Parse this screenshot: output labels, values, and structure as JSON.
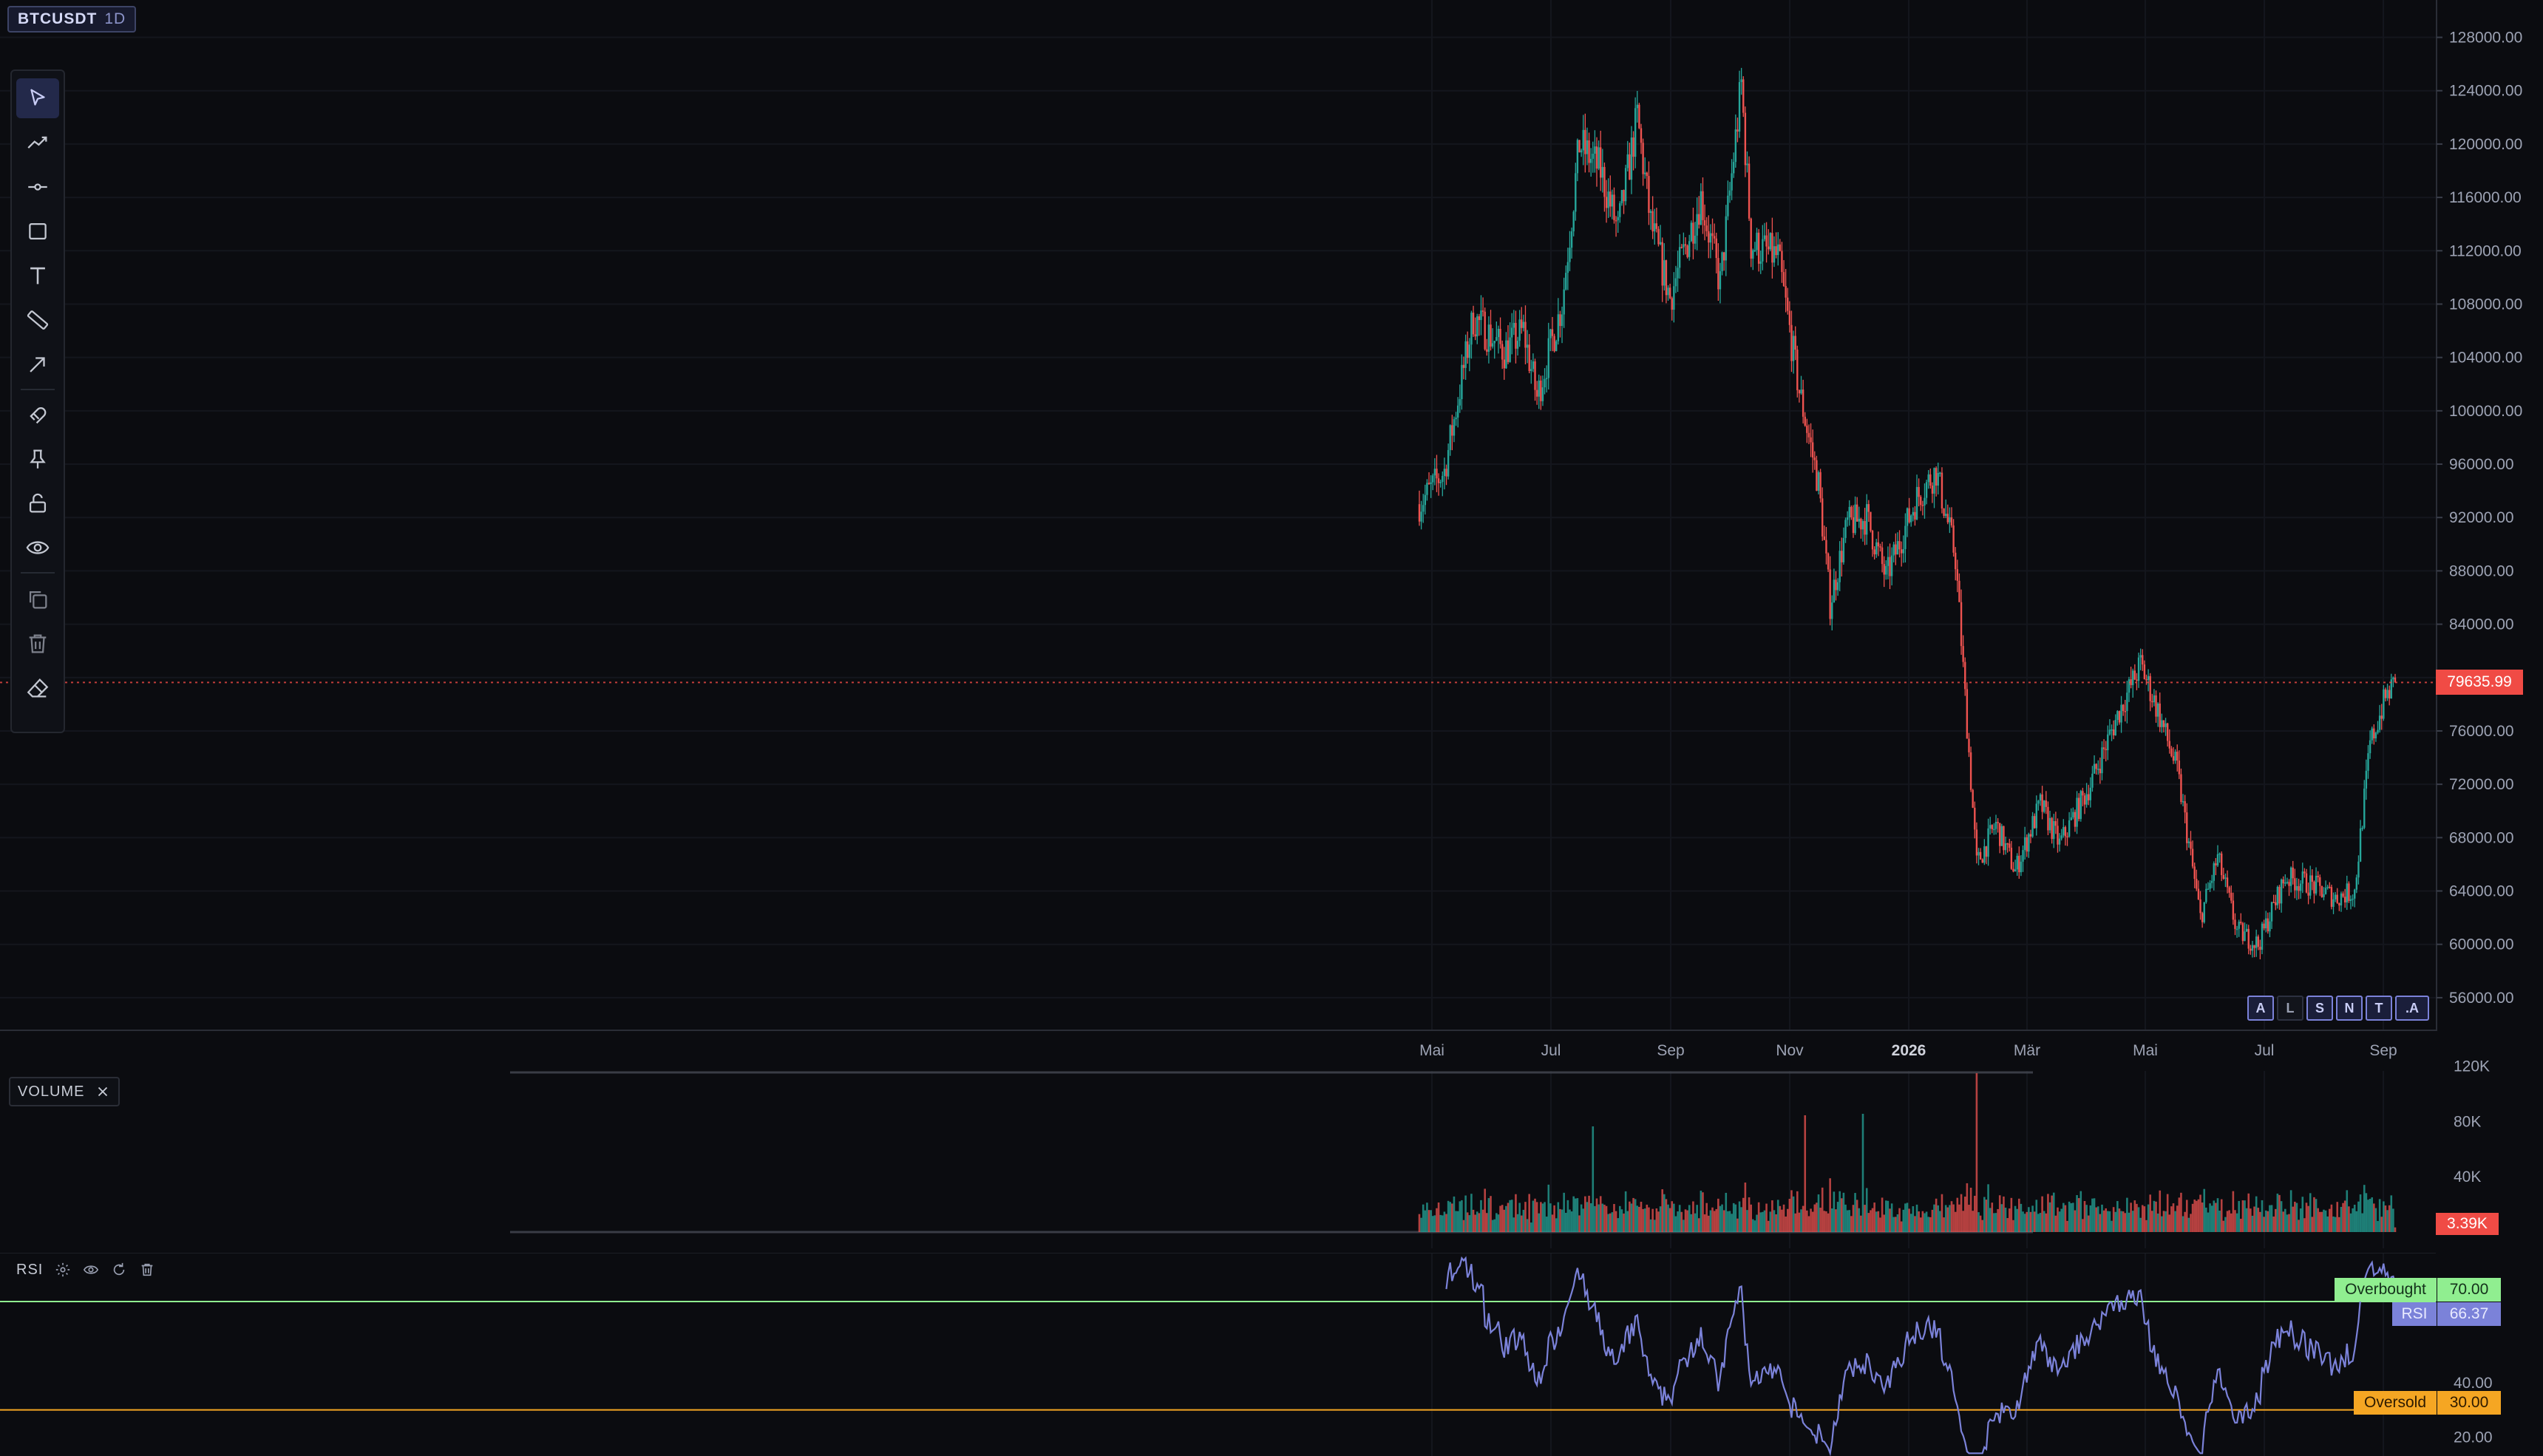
{
  "symbol": {
    "name": "BTCUSDT",
    "timeframe": "1D"
  },
  "price_axis": {
    "ticks": [
      "128000.00",
      "124000.00",
      "120000.00",
      "116000.00",
      "112000.00",
      "108000.00",
      "104000.00",
      "100000.00",
      "96000.00",
      "92000.00",
      "88000.00",
      "84000.00",
      "76000.00",
      "72000.00",
      "68000.00",
      "64000.00",
      "60000.00",
      "56000.00"
    ],
    "tick_values": [
      128000,
      124000,
      120000,
      116000,
      112000,
      108000,
      104000,
      100000,
      96000,
      92000,
      88000,
      84000,
      76000,
      72000,
      68000,
      64000,
      60000,
      56000
    ],
    "range": [
      53500,
      130800
    ],
    "last_price": "79635.99",
    "last_price_value": 79635.99
  },
  "time_axis": {
    "labels": [
      {
        "text": "Mai",
        "bold": false
      },
      {
        "text": "Jul",
        "bold": false
      },
      {
        "text": "Sep",
        "bold": false
      },
      {
        "text": "Nov",
        "bold": false
      },
      {
        "text": "2026",
        "bold": true
      },
      {
        "text": "Mär",
        "bold": false
      },
      {
        "text": "Mai",
        "bold": false
      },
      {
        "text": "Jul",
        "bold": false
      },
      {
        "text": "Sep",
        "bold": false
      }
    ]
  },
  "toolbar": {
    "tools": [
      {
        "id": "cursor",
        "icon": "cursor-icon"
      },
      {
        "id": "trendline",
        "icon": "trend-line-icon"
      },
      {
        "id": "horizontal",
        "icon": "horizontal-line-icon"
      },
      {
        "id": "rectangle",
        "icon": "rectangle-icon"
      },
      {
        "id": "text",
        "icon": "text-icon"
      },
      {
        "id": "measure",
        "icon": "ruler-icon"
      },
      {
        "id": "arrow",
        "icon": "arrow-icon"
      },
      {
        "id": "magnet",
        "icon": "magnet-icon"
      },
      {
        "id": "pin",
        "icon": "pin-icon"
      },
      {
        "id": "lock",
        "icon": "lock-open-icon"
      },
      {
        "id": "visibility",
        "icon": "eye-icon"
      },
      {
        "id": "clone",
        "icon": "clone-icon"
      },
      {
        "id": "delete",
        "icon": "trash-icon"
      },
      {
        "id": "eraser",
        "icon": "eraser-icon"
      }
    ]
  },
  "tags": [
    "A",
    "L",
    "S",
    "N",
    "T",
    ".A"
  ],
  "volume": {
    "label": "VOLUME",
    "ticks": [
      "120K",
      "80K",
      "40K"
    ],
    "tick_values": [
      120000,
      80000,
      40000
    ],
    "range": [
      0,
      122000
    ],
    "last": "3.39K"
  },
  "rsi": {
    "label": "RSI",
    "ticks": [
      "40.00",
      "20.00"
    ],
    "tick_values": [
      40,
      20
    ],
    "range": [
      13,
      88
    ],
    "overbought_label": "Overbought",
    "overbought": "70.00",
    "overbought_value": 70,
    "oversold_label": "Oversold",
    "oversold": "30.00",
    "oversold_value": 30,
    "series_label": "RSI",
    "last": "66.37",
    "last_value": 66.37
  },
  "colors": {
    "bull": "#26a69a",
    "bear": "#ef5350",
    "rsi_line": "#7b82d9",
    "overbought": "#90ee90",
    "oversold": "#f5a623",
    "last_price": "#f04b45",
    "background": "#0b0c10"
  },
  "chart_data": {
    "type": "candlestick",
    "series": [
      {
        "name": "BTCUSDT",
        "note": "daily OHLC approximated from anchors (date, close)"
      }
    ],
    "anchors": [
      [
        "Apr 22",
        93000
      ],
      [
        "May 5",
        95500
      ],
      [
        "May 20",
        107000
      ],
      [
        "Jun 5",
        104500
      ],
      [
        "Jun 15",
        106000
      ],
      [
        "Jun 22",
        101000
      ],
      [
        "Jul 5",
        108000
      ],
      [
        "Jul 14",
        120000
      ],
      [
        "Jul 25",
        118000
      ],
      [
        "Aug 3",
        113500
      ],
      [
        "Aug 13",
        122000
      ],
      [
        "Aug 20",
        114000
      ],
      [
        "Aug 30",
        108500
      ],
      [
        "Sep 15",
        116000
      ],
      [
        "Sep 25",
        109500
      ],
      [
        "Oct 6",
        124500
      ],
      [
        "Oct 11",
        112500
      ],
      [
        "Oct 25",
        111500
      ],
      [
        "Nov 5",
        101500
      ],
      [
        "Nov 15",
        94500
      ],
      [
        "Nov 21",
        85500
      ],
      [
        "Nov 30",
        91500
      ],
      [
        "Dec 10",
        92000
      ],
      [
        "Dec 20",
        87500
      ],
      [
        "Jan 5",
        93500
      ],
      [
        "Jan 15",
        95500
      ],
      [
        "Jan 25",
        89000
      ],
      [
        "Feb 5",
        66000
      ],
      [
        "Feb 15",
        69000
      ],
      [
        "Feb 25",
        65500
      ],
      [
        "Mar 10",
        70500
      ],
      [
        "Mar 20",
        67500
      ],
      [
        "Apr 5",
        72000
      ],
      [
        "Apr 20",
        77500
      ],
      [
        "May 1",
        81000
      ],
      [
        "May 10",
        77500
      ],
      [
        "May 20",
        73000
      ],
      [
        "Jun 1",
        62000
      ],
      [
        "Jun 10",
        66500
      ],
      [
        "Jun 20",
        61000
      ],
      [
        "Jul 1",
        60000
      ],
      [
        "Jul 15",
        65000
      ],
      [
        "Jul 28",
        64500
      ],
      [
        "Aug 10",
        63500
      ],
      [
        "Aug 20",
        64000
      ],
      [
        "Aug 28",
        75000
      ],
      [
        "Sep 5",
        78500
      ],
      [
        "Sep 10",
        79636
      ]
    ]
  }
}
